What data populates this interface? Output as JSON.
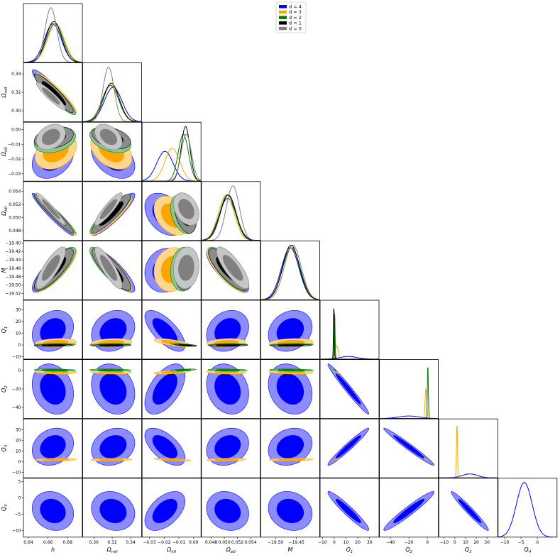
{
  "chart_data": {
    "type": "corner",
    "legend": {
      "placement": "top-center",
      "entries": [
        {
          "label": "d = 4",
          "color": "#0000ff"
        },
        {
          "label": "d = 3",
          "color": "#ffa500"
        },
        {
          "label": "d = 2",
          "color": "#008000"
        },
        {
          "label": "d = 1",
          "color": "#000000"
        },
        {
          "label": "d = 0",
          "color": "#808080"
        }
      ]
    },
    "parameters": [
      {
        "name": "h",
        "ylabel": "",
        "xlim": [
          0.635,
          0.695
        ],
        "ylim": null,
        "xticks": [
          "0.64",
          "0.66",
          "0.68"
        ],
        "xtick_values": [
          0.64,
          0.66,
          0.68
        ]
      },
      {
        "name": "Ω_m0",
        "ylabel": "Ω_m0",
        "xlim": [
          0.288,
          0.352
        ],
        "ylim": [
          0.288,
          0.352
        ],
        "xticks": [
          "0.30",
          "0.32",
          "0.34"
        ],
        "xtick_values": [
          0.3,
          0.32,
          0.34
        ],
        "yticks": [
          "0.30",
          "0.32",
          "0.34"
        ],
        "ytick_values": [
          0.3,
          0.32,
          0.34
        ]
      },
      {
        "name": "Ω_k0",
        "ylabel": "Ω_k0",
        "xlim": [
          -0.035,
          0.005
        ],
        "ylim": [
          -0.035,
          0.005
        ],
        "xticks": [
          "−0.03",
          "−0.02",
          "−0.01",
          "0.00"
        ],
        "xtick_values": [
          -0.03,
          -0.02,
          -0.01,
          0.0
        ],
        "yticks": [
          "−0.03",
          "−0.02",
          "−0.01",
          "0.00"
        ],
        "ytick_values": [
          -0.03,
          -0.02,
          -0.01,
          0.0
        ]
      },
      {
        "name": "Ω_b0",
        "ylabel": "Ω_b0",
        "xlim": [
          0.0465,
          0.0555
        ],
        "ylim": [
          0.0465,
          0.0555
        ],
        "xticks": [
          "0.048",
          "0.050",
          "0.052",
          "0.054"
        ],
        "xtick_values": [
          0.048,
          0.05,
          0.052,
          0.054
        ],
        "yticks": [
          "0.048",
          "0.050",
          "0.052",
          "0.054"
        ],
        "ytick_values": [
          0.048,
          0.05,
          0.052,
          0.054
        ]
      },
      {
        "name": "M",
        "ylabel": "M",
        "xlim": [
          -19.535,
          -19.395
        ],
        "ylim": [
          -19.535,
          -19.395
        ],
        "xticks": [
          "−19.50",
          "−19.45"
        ],
        "xtick_values": [
          -19.5,
          -19.45
        ],
        "yticks": [
          "−19.40",
          "−19.42",
          "−19.44",
          "−19.46",
          "−19.48",
          "−19.50",
          "−19.52"
        ],
        "ytick_values": [
          -19.4,
          -19.42,
          -19.44,
          -19.46,
          -19.48,
          -19.5,
          -19.52
        ]
      },
      {
        "name": "Q_1",
        "ylabel": "Q_1",
        "xlim": [
          -12,
          38
        ],
        "ylim": [
          -12,
          38
        ],
        "xticks": [
          "−10",
          "0",
          "10",
          "20",
          "30"
        ],
        "xtick_values": [
          -10,
          0,
          10,
          20,
          30
        ],
        "yticks": [
          "−10",
          "0",
          "10",
          "20",
          "30"
        ],
        "ytick_values": [
          -10,
          0,
          10,
          20,
          30
        ]
      },
      {
        "name": "Q_2",
        "ylabel": "Q_2",
        "xlim": [
          -52,
          12
        ],
        "ylim": [
          -52,
          12
        ],
        "xticks": [
          "−40",
          "−20",
          "0"
        ],
        "xtick_values": [
          -40,
          -20,
          0
        ],
        "yticks": [
          "−40",
          "−20",
          "0"
        ],
        "ytick_values": [
          -40,
          -20,
          0
        ]
      },
      {
        "name": "Q_3",
        "ylabel": "Q_3",
        "xlim": [
          -15,
          40
        ],
        "ylim": [
          -15,
          40
        ],
        "xticks": [
          "−10",
          "0",
          "10",
          "20",
          "30"
        ],
        "xtick_values": [
          -10,
          0,
          10,
          20,
          30
        ],
        "yticks": [
          "−10",
          "0",
          "10",
          "20",
          "30"
        ],
        "ytick_values": [
          -10,
          0,
          10,
          20,
          30
        ]
      },
      {
        "name": "Q_4",
        "ylabel": "Q_4",
        "xlim": [
          -12,
          6
        ],
        "ylim": [
          -12,
          6
        ],
        "xticks": [
          "−10",
          "−5",
          "0"
        ],
        "xtick_values": [
          -10,
          -5,
          0
        ],
        "yticks": [
          "−10",
          "−5",
          "0",
          "5"
        ],
        "ytick_values": [
          -10,
          -5,
          0,
          5
        ]
      }
    ],
    "series": [
      {
        "name": "d = 4",
        "color": "#0000ff",
        "n_params": 9,
        "mean": [
          0.665,
          0.321,
          -0.0195,
          0.0505,
          -19.465,
          12,
          -20,
          14,
          -4
        ],
        "sigma": [
          0.0085,
          0.0095,
          0.0055,
          0.0013,
          0.021,
          7,
          11,
          7,
          2.4
        ]
      },
      {
        "name": "d = 3",
        "color": "#ffa500",
        "n_params": 8,
        "mean": [
          0.668,
          0.319,
          -0.0145,
          0.0503,
          -19.463,
          2,
          -1.5,
          2
        ],
        "sigma": [
          0.0085,
          0.009,
          0.005,
          0.0012,
          0.021,
          1.4,
          0.9,
          0.5
        ]
      },
      {
        "name": "d = 2",
        "color": "#008000",
        "n_params": 7,
        "mean": [
          0.667,
          0.318,
          -0.007,
          0.0505,
          -19.462,
          0.3,
          0.6
        ],
        "sigma": [
          0.0085,
          0.009,
          0.0035,
          0.0012,
          0.021,
          0.4,
          0.5
        ]
      },
      {
        "name": "d = 1",
        "color": "#000000",
        "n_params": 6,
        "mean": [
          0.666,
          0.319,
          -0.0055,
          0.0506,
          -19.463,
          -0.3
        ],
        "sigma": [
          0.008,
          0.0085,
          0.003,
          0.0012,
          0.02,
          0.35
        ]
      },
      {
        "name": "d = 0",
        "color": "#808080",
        "n_params": 5,
        "mean": [
          0.663,
          0.316,
          -0.005,
          0.0513,
          -19.459
        ],
        "sigma": [
          0.006,
          0.006,
          0.0035,
          0.001,
          0.02
        ]
      }
    ],
    "correlations": [
      [
        1,
        -0.93,
        0.3,
        -0.96,
        0.82,
        0.2,
        -0.2,
        0.2,
        -0.15
      ],
      [
        -0.93,
        1,
        -0.4,
        0.9,
        -0.85,
        0.2,
        -0.2,
        0.2,
        -0.15
      ],
      [
        0.3,
        -0.4,
        1,
        -0.35,
        0.1,
        -0.7,
        0.55,
        -0.6,
        0.5
      ],
      [
        -0.96,
        0.9,
        -0.35,
        1,
        -0.8,
        0.2,
        -0.2,
        0.2,
        -0.15
      ],
      [
        0.82,
        -0.85,
        0.1,
        -0.8,
        1,
        0.2,
        -0.2,
        0.2,
        -0.15
      ],
      [
        0.2,
        0.2,
        -0.7,
        0.2,
        0.2,
        1,
        -0.98,
        0.97,
        -0.95
      ],
      [
        -0.2,
        -0.2,
        0.55,
        -0.2,
        -0.2,
        -0.98,
        1,
        -0.98,
        0.96
      ],
      [
        0.2,
        0.2,
        -0.6,
        0.2,
        0.2,
        0.97,
        -0.98,
        1,
        -0.97
      ],
      [
        -0.15,
        -0.15,
        0.5,
        -0.15,
        -0.15,
        -0.95,
        0.96,
        -0.97,
        1
      ]
    ]
  }
}
